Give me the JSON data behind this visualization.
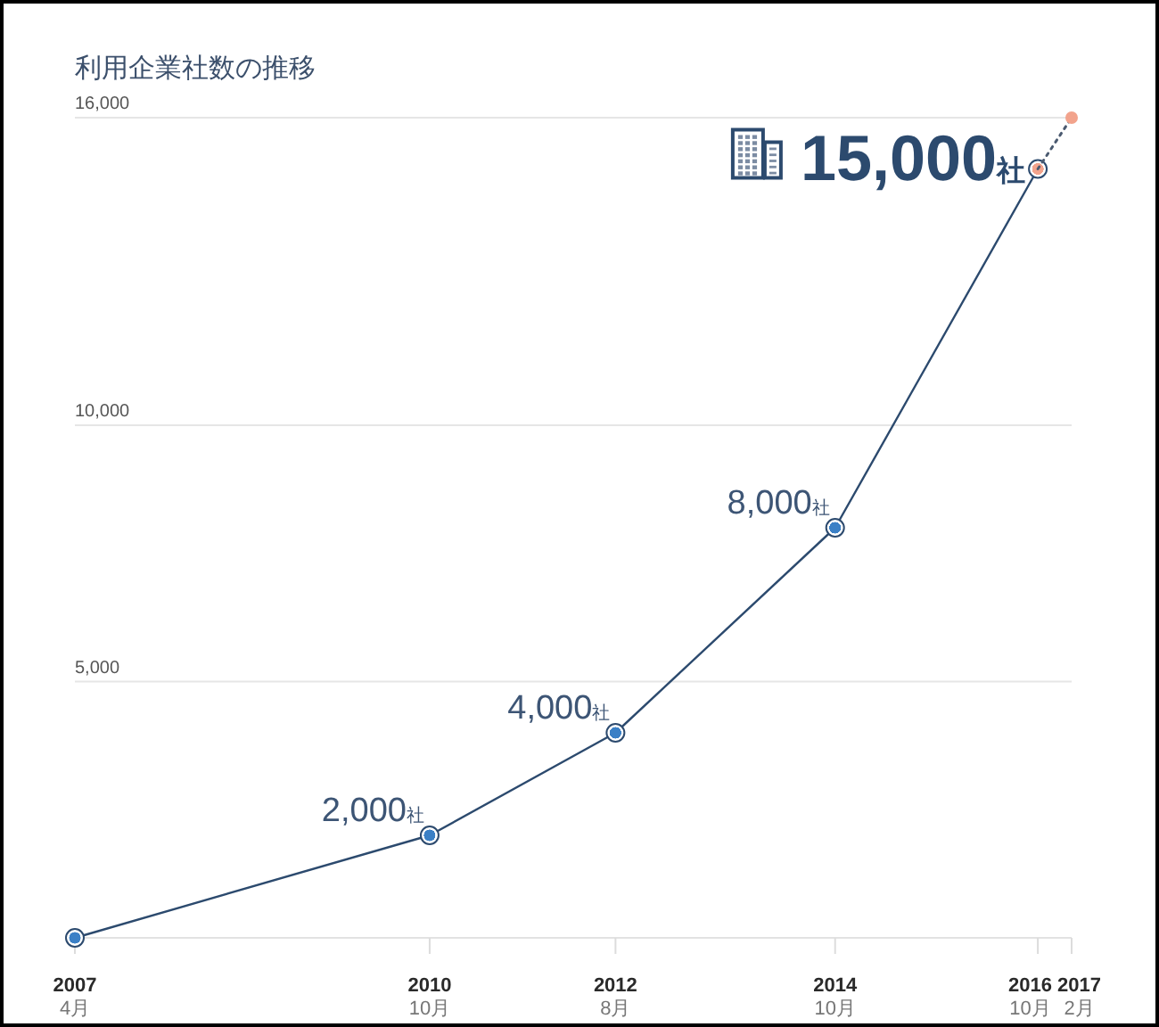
{
  "chart_data": {
    "type": "line",
    "title": "利用企業社数の推移",
    "xlim": [
      "2007-04",
      "2017-02"
    ],
    "xticks": [
      {
        "value": "2007-04",
        "label": "2007\n4月"
      },
      {
        "value": "2010-10",
        "label": "2010\n10月"
      },
      {
        "value": "2012-08",
        "label": "2012\n8月"
      },
      {
        "value": "2014-10",
        "label": "2014\n10月"
      },
      {
        "value": "2016-10",
        "label": "2016\n10月"
      },
      {
        "value": "2017-02",
        "label": "2017\n2月"
      }
    ],
    "ylim": [
      0,
      16000
    ],
    "yticks": [
      {
        "value": 5000,
        "label": "5,000"
      },
      {
        "value": 10000,
        "label": "10,000"
      },
      {
        "value": 16000,
        "label": "16,000"
      }
    ],
    "grid": "y",
    "series": [
      {
        "type": "line",
        "color": "#2c4a6e",
        "colors": [
          "#3b80c6",
          "#3b80c6",
          "#3b80c6",
          "#3b80c6",
          "#f2a38c"
        ],
        "marker": "circle",
        "line_style": "solid",
        "x": [
          "2007-04",
          "2010-10",
          "2012-08",
          "2014-10",
          "2016-10"
        ],
        "values": [
          0,
          2000,
          4000,
          8000,
          15000
        ],
        "value_labels": [
          null,
          "2,000社",
          "4,000社",
          "8,000社",
          "15,000社"
        ]
      },
      {
        "type": "line",
        "color": "#4a5a70",
        "marker": "none",
        "line_style": "dotted",
        "x": [
          "2016-10",
          "2017-02"
        ],
        "values": [
          15000,
          16000
        ]
      },
      {
        "type": "scatter",
        "color": "#f2a38c",
        "marker": "circle",
        "x": [
          "2017-02"
        ],
        "values": [
          16000
        ]
      }
    ]
  }
}
